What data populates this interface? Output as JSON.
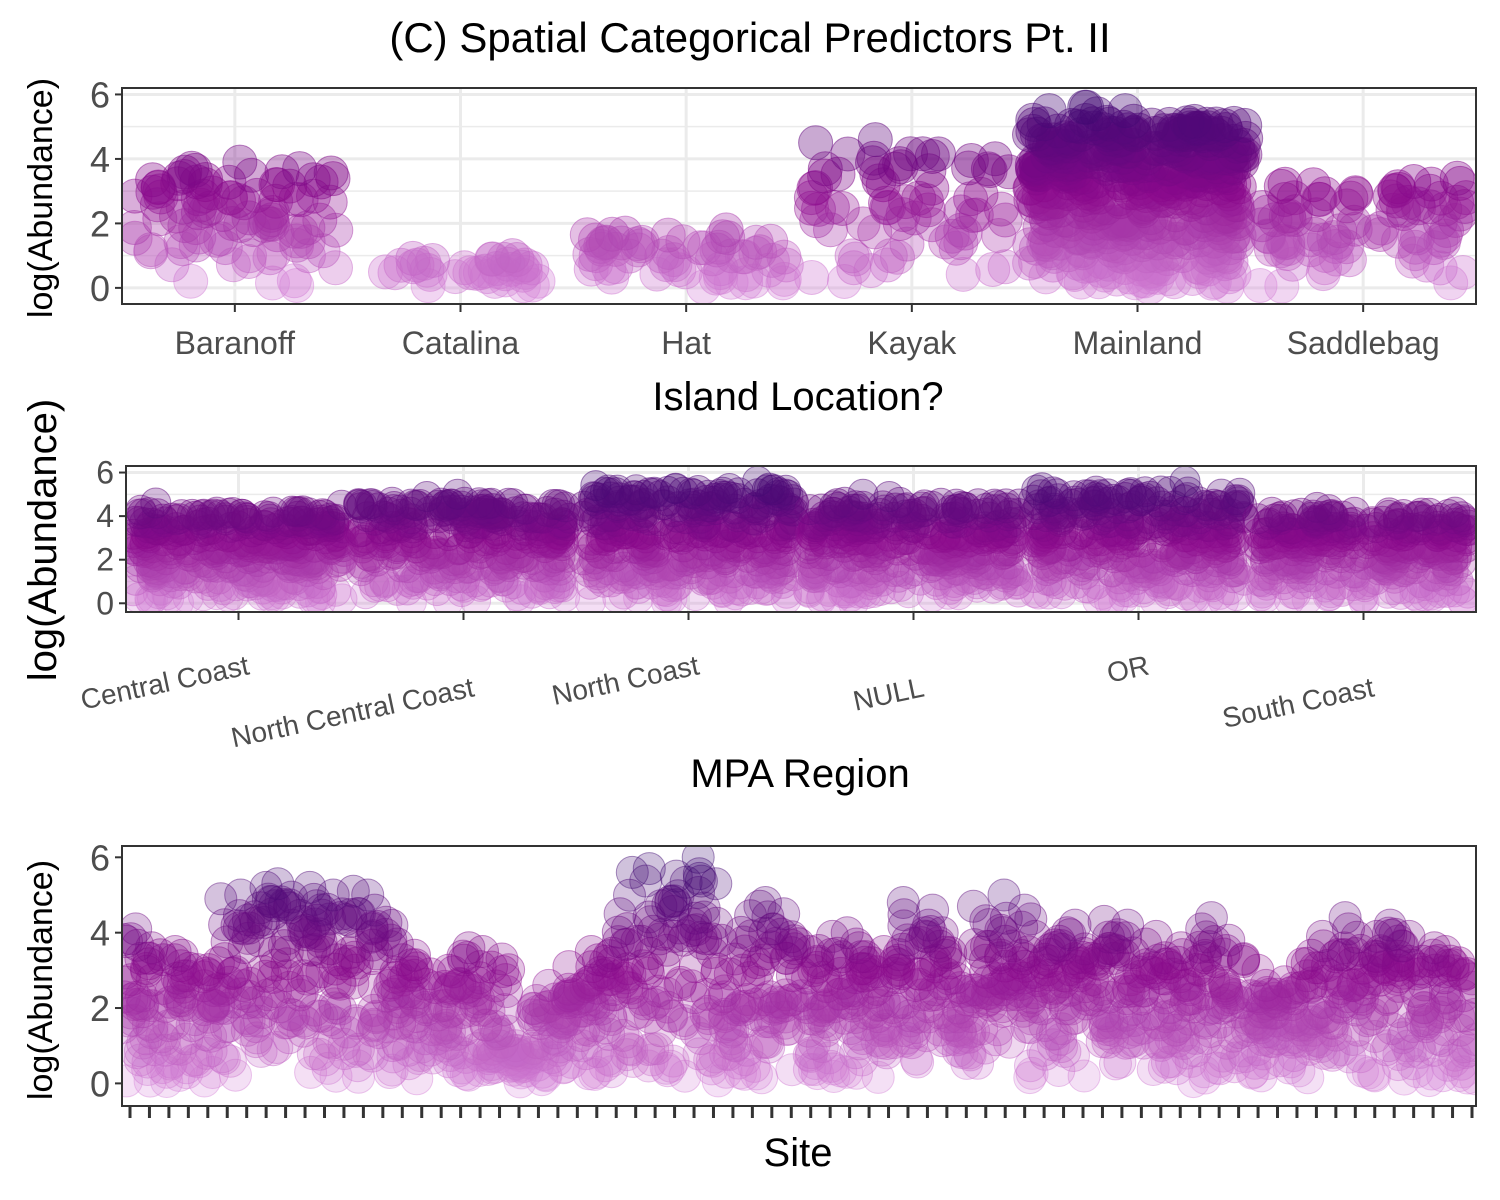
{
  "title": "(C) Spatial Categorical Predictors Pt. II",
  "colors": {
    "low": "#d98bdc",
    "mid": "#8b0a8c",
    "high": "#3d0a72",
    "grid": "#ebebeb",
    "frame": "#333333"
  },
  "chart_data": [
    {
      "type": "scatter",
      "xlabel": "Island Location?",
      "ylabel": "log(Abundance)",
      "ylim": [
        -0.5,
        6.2
      ],
      "yticks": [
        0,
        2,
        4,
        6
      ],
      "grid": true,
      "categories": [
        "Baranoff",
        "Catalina",
        "Hat",
        "Kayak",
        "Mainland",
        "Saddlebag"
      ],
      "series": [
        {
          "category": "Baranoff",
          "jitter": 0.45,
          "ymax": 4.0,
          "n": 90,
          "outliers": [
            3.6,
            3.9,
            3.7,
            3.4,
            3.2,
            2.8
          ]
        },
        {
          "category": "Catalina",
          "jitter": 0.35,
          "ymax": 1.0,
          "n": 35,
          "outliers": [
            1.0,
            0.9,
            0.6
          ]
        },
        {
          "category": "Hat",
          "jitter": 0.45,
          "ymax": 1.8,
          "n": 60,
          "outliers": [
            1.8,
            1.7,
            1.4
          ]
        },
        {
          "category": "Kayak",
          "jitter": 0.45,
          "ymax": 4.6,
          "n": 70,
          "outliers": [
            4.6,
            4.5,
            3.6,
            3.2,
            2.8
          ]
        },
        {
          "category": "Mainland",
          "jitter": 0.48,
          "ymax": 5.6,
          "n": 450,
          "outliers": [
            5.6,
            5.5,
            5.6,
            5.4,
            5.5
          ]
        },
        {
          "category": "Saddlebag",
          "jitter": 0.46,
          "ymax": 3.5,
          "n": 90,
          "outliers": [
            3.4,
            3.3,
            3.2,
            3.0
          ]
        }
      ]
    },
    {
      "type": "scatter",
      "xlabel": "MPA Region",
      "ylabel": "log(Abundance)",
      "ylim": [
        -0.4,
        6.3
      ],
      "yticks": [
        0,
        2,
        4,
        6
      ],
      "grid": true,
      "categories": [
        "Central Coast",
        "North Central Coast",
        "North Coast",
        "NULL",
        "OR",
        "South Coast"
      ],
      "series": [
        {
          "category": "Central Coast",
          "jitter": 0.47,
          "ymax": 4.6,
          "n": 320,
          "outliers": [
            4.6,
            4.5
          ]
        },
        {
          "category": "North Central Coast",
          "jitter": 0.47,
          "ymax": 5.0,
          "n": 300,
          "outliers": [
            4.9,
            5.0
          ]
        },
        {
          "category": "North Coast",
          "jitter": 0.47,
          "ymax": 5.7,
          "n": 340,
          "outliers": [
            5.6,
            5.4,
            5.2
          ]
        },
        {
          "category": "NULL",
          "jitter": 0.47,
          "ymax": 5.0,
          "n": 320,
          "outliers": [
            5.0,
            4.9
          ]
        },
        {
          "category": "OR",
          "jitter": 0.47,
          "ymax": 5.6,
          "n": 320,
          "outliers": [
            5.6,
            5.3
          ]
        },
        {
          "category": "South Coast",
          "jitter": 0.47,
          "ymax": 4.5,
          "n": 300,
          "outliers": [
            4.4,
            4.3
          ]
        }
      ]
    },
    {
      "type": "scatter",
      "xlabel": "Site",
      "ylabel": "log(Abundance)",
      "ylim": [
        -0.6,
        6.3
      ],
      "yticks": [
        0,
        2,
        4,
        6
      ],
      "grid": false,
      "site_count": 70,
      "site_max": [
        4.1,
        3.6,
        3.5,
        3.4,
        3.2,
        4.9,
        5.0,
        5.2,
        5.3,
        5.2,
        5.0,
        5.1,
        5.0,
        4.6,
        3.7,
        3.4,
        3.0,
        3.6,
        3.5,
        3.3,
        1.0,
        2.2,
        2.6,
        3.1,
        3.5,
        4.5,
        5.6,
        5.7,
        5.5,
        6.0,
        5.3,
        3.3,
        4.7,
        4.8,
        4.5,
        3.5,
        3.9,
        4.0,
        3.6,
        3.5,
        4.8,
        4.6,
        4.0,
        2.8,
        4.7,
        5.0,
        4.6,
        3.9,
        4.0,
        4.2,
        4.3,
        4.2,
        3.7,
        3.9,
        3.6,
        4.1,
        4.4,
        3.8,
        3.0,
        2.6,
        2.7,
        3.4,
        3.9,
        4.4,
        3.9,
        4.2,
        3.9,
        3.6,
        3.5,
        3.2
      ],
      "points_per_site": 22
    }
  ]
}
